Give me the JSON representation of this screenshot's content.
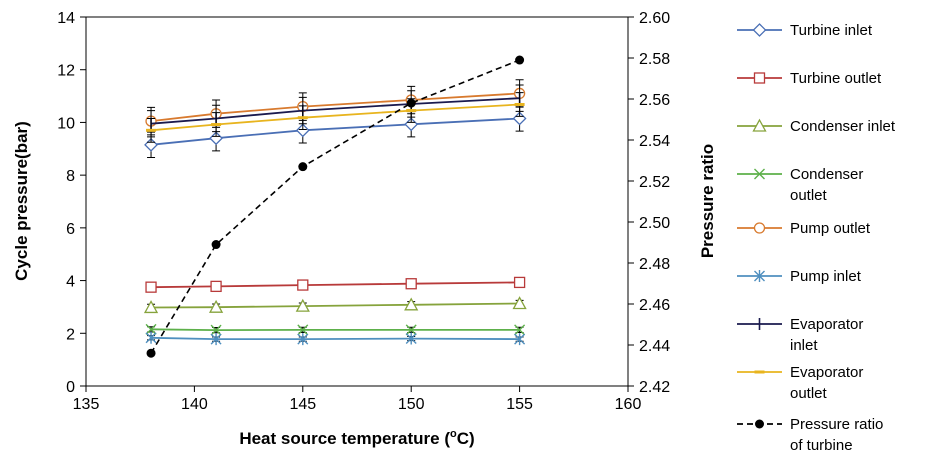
{
  "chart_data": {
    "type": "line",
    "x": [
      138,
      141,
      145,
      150,
      155
    ],
    "xlabel": "Heat source temperature (",
    "xlabel_sup": "o",
    "xlabel_end": "C)",
    "ylabel": "Cycle  pressure(bar)",
    "y2label": "Pressure ratio",
    "xlim": [
      135,
      160
    ],
    "xticks": [
      135,
      140,
      145,
      150,
      155,
      160
    ],
    "ylim": [
      0,
      14
    ],
    "yticks": [
      0,
      2,
      4,
      6,
      8,
      10,
      12,
      14
    ],
    "y2lim": [
      2.42,
      2.6
    ],
    "y2ticks": [
      "2.42",
      "2.44",
      "2.46",
      "2.48",
      "2.50",
      "2.52",
      "2.54",
      "2.56",
      "2.58",
      "2.60"
    ],
    "grid": false,
    "legend_position": "right",
    "series": [
      {
        "name": "Turbine inlet",
        "axis": "left",
        "color": "#4a6fb5",
        "marker": "diamond",
        "values": [
          9.15,
          9.4,
          9.7,
          9.93,
          10.15
        ],
        "error": 0.48
      },
      {
        "name": "Turbine outlet",
        "axis": "left",
        "color": "#b83a3a",
        "marker": "square",
        "values": [
          3.75,
          3.78,
          3.83,
          3.88,
          3.93
        ],
        "error": 0
      },
      {
        "name": "Condenser inlet",
        "axis": "left",
        "color": "#86a33c",
        "marker": "triangle",
        "values": [
          2.98,
          2.99,
          3.03,
          3.08,
          3.13
        ],
        "error": 0.12
      },
      {
        "name": "Condenser outlet",
        "axis": "left",
        "color": "#5db04a",
        "marker": "x",
        "values": [
          2.15,
          2.12,
          2.13,
          2.13,
          2.13
        ],
        "error": 0.1
      },
      {
        "name": "Pump outlet",
        "axis": "left",
        "color": "#d87a2e",
        "marker": "circle",
        "values": [
          10.05,
          10.33,
          10.6,
          10.85,
          11.1
        ],
        "error": 0.52
      },
      {
        "name": "Pump inlet",
        "axis": "left",
        "color": "#4f8fbf",
        "marker": "star",
        "values": [
          1.83,
          1.78,
          1.78,
          1.8,
          1.78
        ],
        "error": 0.08
      },
      {
        "name": "Evaporator inlet",
        "axis": "left",
        "color": "#1a1a4e",
        "marker": "plus",
        "values": [
          9.95,
          10.15,
          10.45,
          10.7,
          10.92
        ],
        "error": 0.5
      },
      {
        "name": "Evaporator outlet",
        "axis": "left",
        "color": "#e8b41e",
        "marker": "dash",
        "values": [
          9.7,
          9.92,
          10.18,
          10.45,
          10.68
        ],
        "error": 0.45
      },
      {
        "name": "Pressure ratio of turbine",
        "axis": "right",
        "color": "#000000",
        "marker": "filled-circle",
        "dashed": true,
        "values": [
          2.436,
          2.489,
          2.527,
          2.558,
          2.579
        ],
        "error": 0
      }
    ],
    "legend_lines": [
      [
        "Turbine inlet"
      ],
      [
        "Turbine outlet"
      ],
      [
        "Condenser inlet"
      ],
      [
        "Condenser",
        "outlet"
      ],
      [
        "Pump outlet"
      ],
      [
        "Pump inlet"
      ],
      [
        "Evaporator",
        "inlet"
      ],
      [
        "Evaporator",
        "outlet"
      ],
      [
        "Pressure ratio",
        "of turbine"
      ]
    ]
  }
}
